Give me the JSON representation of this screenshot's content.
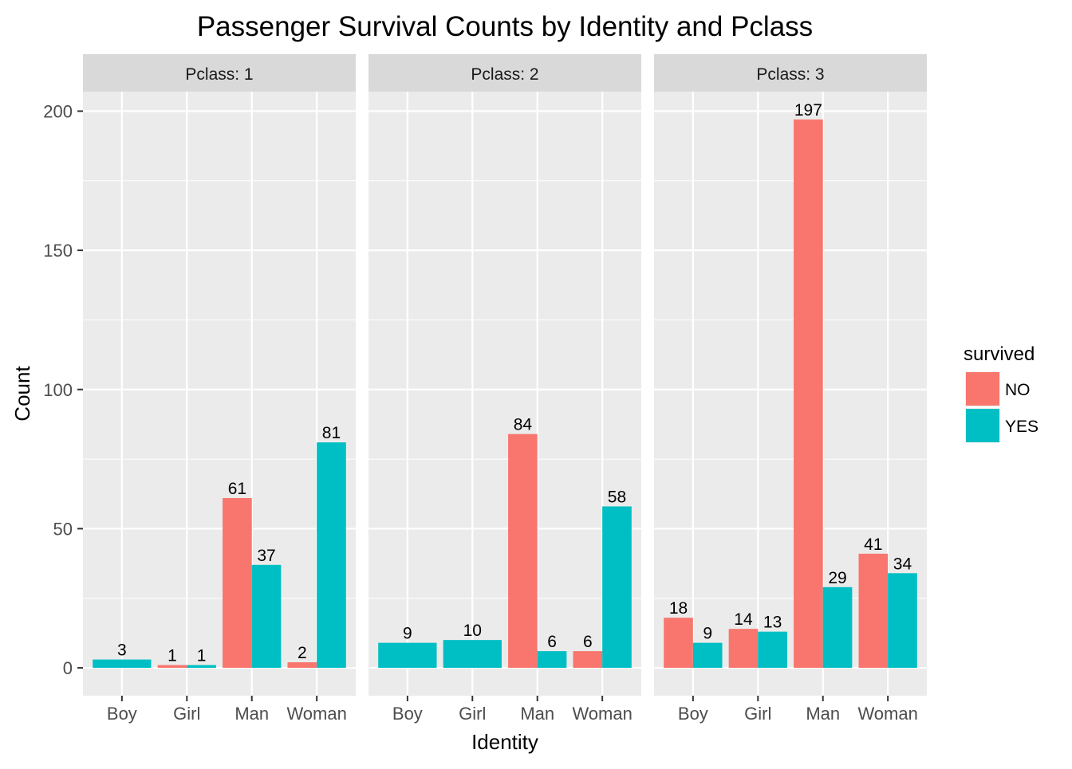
{
  "chart_data": {
    "type": "bar",
    "title": "Passenger Survival Counts by Identity and Pclass",
    "xlabel": "Identity",
    "ylabel": "Count",
    "ylim": [
      -10,
      207
    ],
    "yticks": [
      0,
      50,
      100,
      150,
      200
    ],
    "categories": [
      "Boy",
      "Girl",
      "Man",
      "Woman"
    ],
    "grid": true,
    "legend": {
      "title": "survived",
      "position": "right",
      "entries": [
        {
          "label": "NO",
          "color": "#F8766D"
        },
        {
          "label": "YES",
          "color": "#00BFC4"
        }
      ]
    },
    "facets": [
      {
        "label": "Pclass: 1",
        "bars": [
          {
            "category": "Boy",
            "group": "YES",
            "value": 3
          },
          {
            "category": "Girl",
            "group": "NO",
            "value": 1
          },
          {
            "category": "Girl",
            "group": "YES",
            "value": 1
          },
          {
            "category": "Man",
            "group": "NO",
            "value": 61
          },
          {
            "category": "Man",
            "group": "YES",
            "value": 37
          },
          {
            "category": "Woman",
            "group": "NO",
            "value": 2
          },
          {
            "category": "Woman",
            "group": "YES",
            "value": 81
          }
        ]
      },
      {
        "label": "Pclass: 2",
        "bars": [
          {
            "category": "Boy",
            "group": "YES",
            "value": 9
          },
          {
            "category": "Girl",
            "group": "YES",
            "value": 10
          },
          {
            "category": "Man",
            "group": "NO",
            "value": 84
          },
          {
            "category": "Man",
            "group": "YES",
            "value": 6
          },
          {
            "category": "Woman",
            "group": "NO",
            "value": 6
          },
          {
            "category": "Woman",
            "group": "YES",
            "value": 58
          }
        ]
      },
      {
        "label": "Pclass: 3",
        "bars": [
          {
            "category": "Boy",
            "group": "NO",
            "value": 18
          },
          {
            "category": "Boy",
            "group": "YES",
            "value": 9
          },
          {
            "category": "Girl",
            "group": "NO",
            "value": 14
          },
          {
            "category": "Girl",
            "group": "YES",
            "value": 13
          },
          {
            "category": "Man",
            "group": "NO",
            "value": 197
          },
          {
            "category": "Man",
            "group": "YES",
            "value": 29
          },
          {
            "category": "Woman",
            "group": "NO",
            "value": 41
          },
          {
            "category": "Woman",
            "group": "YES",
            "value": 34
          }
        ]
      }
    ]
  }
}
